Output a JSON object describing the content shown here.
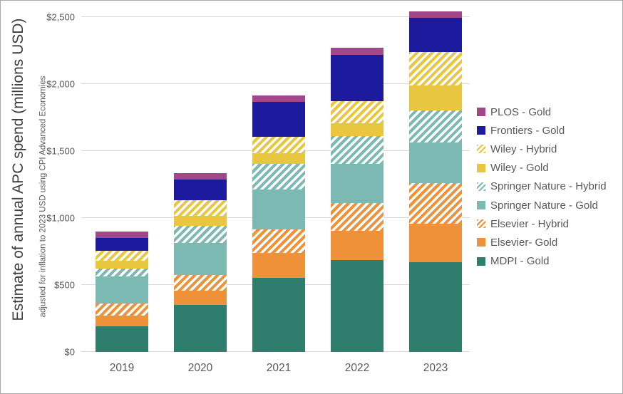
{
  "axis": {
    "title": "Estimate of annual APC spend (millions USD)",
    "subtitle": "adjusted for inflation to 2023 USD using CPI Advanced Economies",
    "tick_labels": [
      "$0",
      "$500",
      "$1,000",
      "$1,500",
      "$2,000",
      "$2,500"
    ]
  },
  "chart_data": {
    "type": "bar",
    "stacked": true,
    "title": "",
    "xlabel": "",
    "ylabel": "Estimate of annual APC spend (millions USD)",
    "ylabel_note": "adjusted for inflation to 2023 USD using CPI Advanced Economies",
    "ylim": [
      0,
      2500
    ],
    "yticks": [
      0,
      500,
      1000,
      1500,
      2000,
      2500
    ],
    "grid": true,
    "legend_position": "right",
    "categories": [
      "2019",
      "2020",
      "2021",
      "2022",
      "2023"
    ],
    "series": [
      {
        "name": "MDPI - Gold",
        "color": "#2f7e6d",
        "pattern": "solid",
        "values": [
          190,
          350,
          555,
          685,
          670
        ]
      },
      {
        "name": "Elsevier- Gold",
        "color": "#ef9138",
        "pattern": "solid",
        "values": [
          80,
          105,
          185,
          220,
          290
        ]
      },
      {
        "name": "Elsevier - Hybrid",
        "color": "#ef9138",
        "pattern": "hatch",
        "values": [
          90,
          120,
          175,
          205,
          300
        ]
      },
      {
        "name": "Springer Nature - Gold",
        "color": "#7cb9b2",
        "pattern": "solid",
        "values": [
          205,
          240,
          300,
          295,
          305
        ]
      },
      {
        "name": "Springer Nature - Hybrid",
        "color": "#7cb9b2",
        "pattern": "hatch",
        "values": [
          60,
          125,
          190,
          205,
          240
        ]
      },
      {
        "name": "Wiley - Gold",
        "color": "#e9c63f",
        "pattern": "solid",
        "values": [
          55,
          75,
          80,
          100,
          185
        ]
      },
      {
        "name": "Wiley - Hybrid",
        "color": "#e9c63f",
        "pattern": "hatch",
        "values": [
          75,
          120,
          120,
          160,
          250
        ]
      },
      {
        "name": "Frontiers - Gold",
        "color": "#1c1b9e",
        "pattern": "solid",
        "values": [
          95,
          150,
          265,
          350,
          255
        ]
      },
      {
        "name": "PLOS - Gold",
        "color": "#a2478a",
        "pattern": "solid",
        "values": [
          50,
          50,
          45,
          50,
          50
        ]
      }
    ],
    "totals": [
      900,
      1335,
      1915,
      2270,
      2545
    ]
  },
  "legend": {
    "items": [
      {
        "label": "PLOS - Gold",
        "color": "#a2478a",
        "pattern": "solid"
      },
      {
        "label": "Frontiers - Gold",
        "color": "#1c1b9e",
        "pattern": "solid"
      },
      {
        "label": "Wiley - Hybrid",
        "color": "#e9c63f",
        "pattern": "hatch"
      },
      {
        "label": "Wiley - Gold",
        "color": "#e9c63f",
        "pattern": "solid"
      },
      {
        "label": "Springer Nature - Hybrid",
        "color": "#7cb9b2",
        "pattern": "hatch"
      },
      {
        "label": "Springer Nature - Gold",
        "color": "#7cb9b2",
        "pattern": "solid"
      },
      {
        "label": "Elsevier - Hybrid",
        "color": "#ef9138",
        "pattern": "hatch"
      },
      {
        "label": "Elsevier- Gold",
        "color": "#ef9138",
        "pattern": "solid"
      },
      {
        "label": "MDPI - Gold",
        "color": "#2f7e6d",
        "pattern": "solid"
      }
    ]
  },
  "colors": {
    "gridline": "#d9d9d9",
    "tick_text": "#595959",
    "axis_title_text": "#3d3d3d",
    "frame_border": "#a9a9a9",
    "background": "#ffffff"
  }
}
